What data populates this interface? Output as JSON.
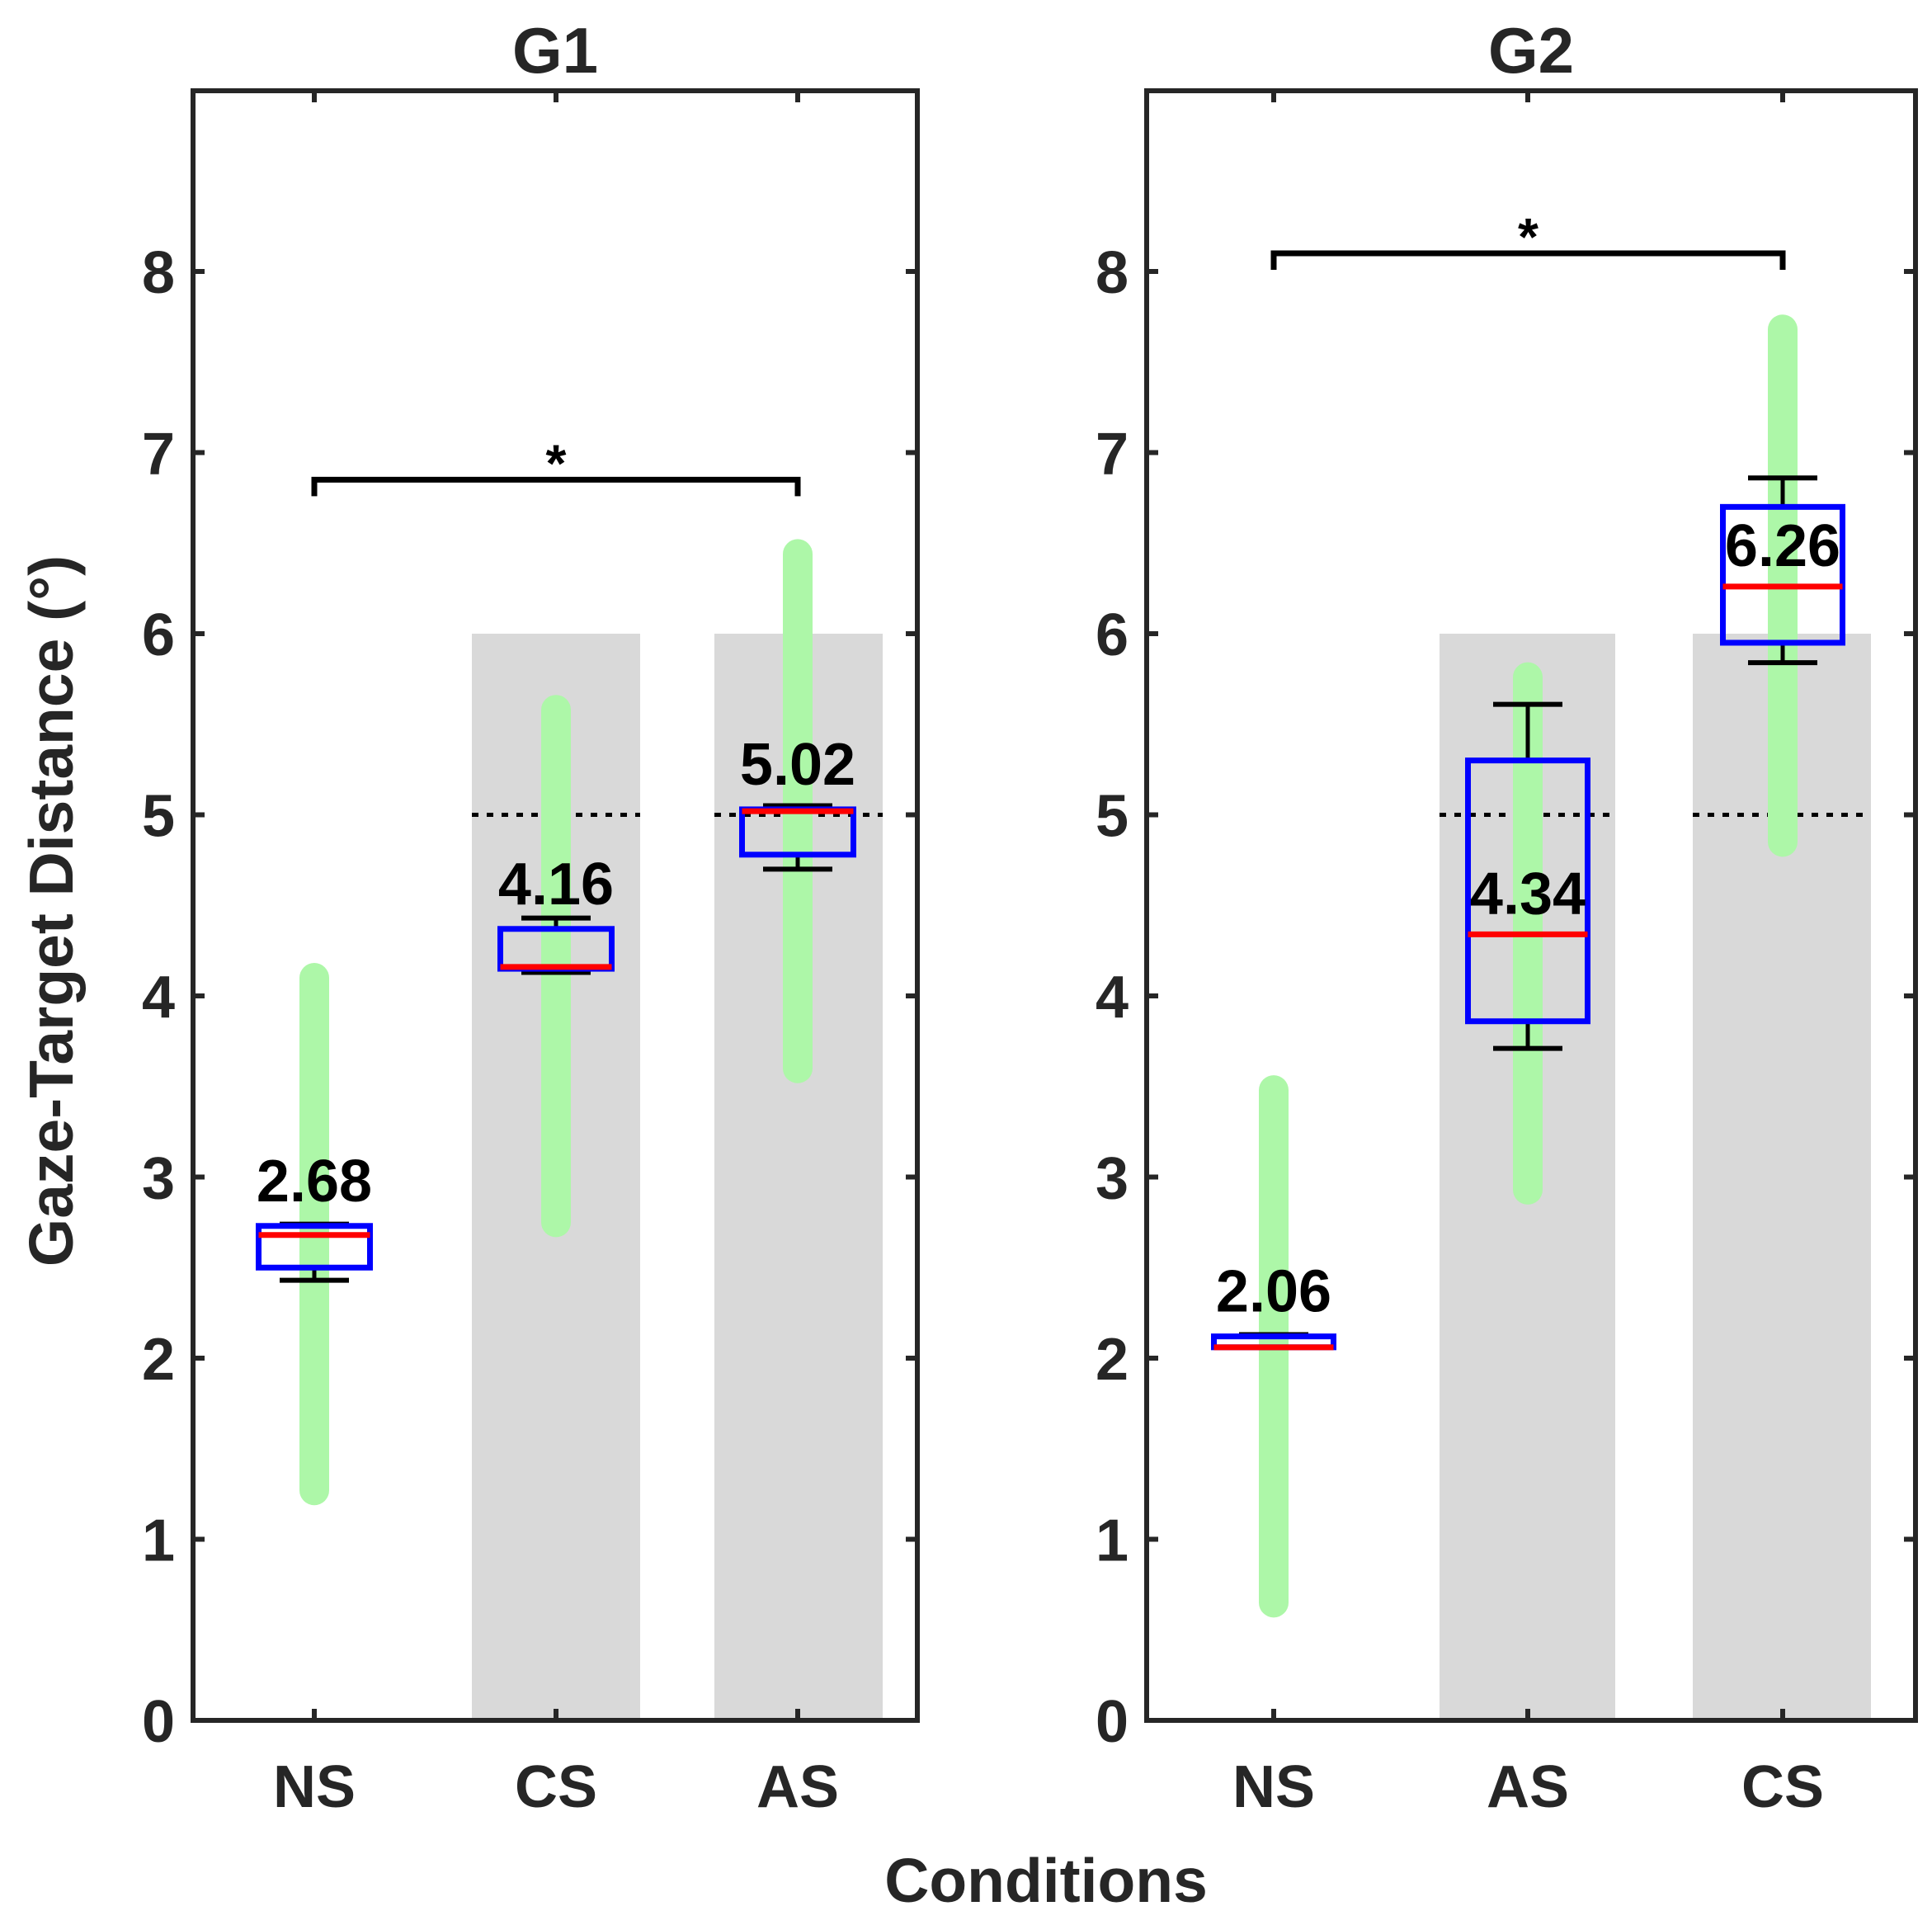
{
  "chart_data": {
    "type": "box",
    "ylabel": "Gaze-Target Distance (°)",
    "xlabel": "Conditions",
    "ylim": [
      0,
      9
    ],
    "yticks": [
      0,
      1,
      2,
      3,
      4,
      5,
      6,
      7,
      8
    ],
    "threshold_value": 5,
    "panels": [
      {
        "title": "G1",
        "categories": [
          "NS",
          "CS",
          "AS"
        ],
        "boxes": [
          {
            "category": "NS",
            "whisker_low": 2.43,
            "q1": 2.5,
            "median": 2.68,
            "q3": 2.73,
            "whisker_high": 2.74,
            "label": "2.68",
            "range_low": 1.27,
            "range_high": 4.1,
            "shaded": false,
            "threshold": false
          },
          {
            "category": "CS",
            "whisker_low": 4.13,
            "q1": 4.15,
            "median": 4.16,
            "q3": 4.37,
            "whisker_high": 4.43,
            "label": "4.16",
            "range_low": 2.75,
            "range_high": 5.58,
            "shaded": true,
            "threshold": true
          },
          {
            "category": "AS",
            "whisker_low": 4.7,
            "q1": 4.78,
            "median": 5.02,
            "q3": 5.03,
            "whisker_high": 5.05,
            "label": "5.02",
            "range_low": 3.6,
            "range_high": 6.44,
            "shaded": true,
            "threshold": true
          }
        ],
        "significance": {
          "from": "NS",
          "to": "AS",
          "y": 6.85,
          "label": "*"
        }
      },
      {
        "title": "G2",
        "categories": [
          "NS",
          "AS",
          "CS"
        ],
        "boxes": [
          {
            "category": "NS",
            "whisker_low": 2.06,
            "q1": 2.06,
            "median": 2.06,
            "q3": 2.12,
            "whisker_high": 2.13,
            "label": "2.06",
            "range_low": 0.65,
            "range_high": 3.48,
            "shaded": false,
            "threshold": false
          },
          {
            "category": "AS",
            "whisker_low": 3.71,
            "q1": 3.86,
            "median": 4.34,
            "q3": 5.3,
            "whisker_high": 5.61,
            "label": "4.34",
            "range_low": 2.93,
            "range_high": 5.76,
            "shaded": true,
            "threshold": true
          },
          {
            "category": "CS",
            "whisker_low": 5.84,
            "q1": 5.95,
            "median": 6.26,
            "q3": 6.7,
            "whisker_high": 6.86,
            "label": "6.26",
            "range_low": 4.85,
            "range_high": 7.68,
            "shaded": true,
            "threshold": true
          }
        ],
        "significance": {
          "from": "NS",
          "to": "CS",
          "y": 8.1,
          "label": "*"
        }
      }
    ]
  }
}
